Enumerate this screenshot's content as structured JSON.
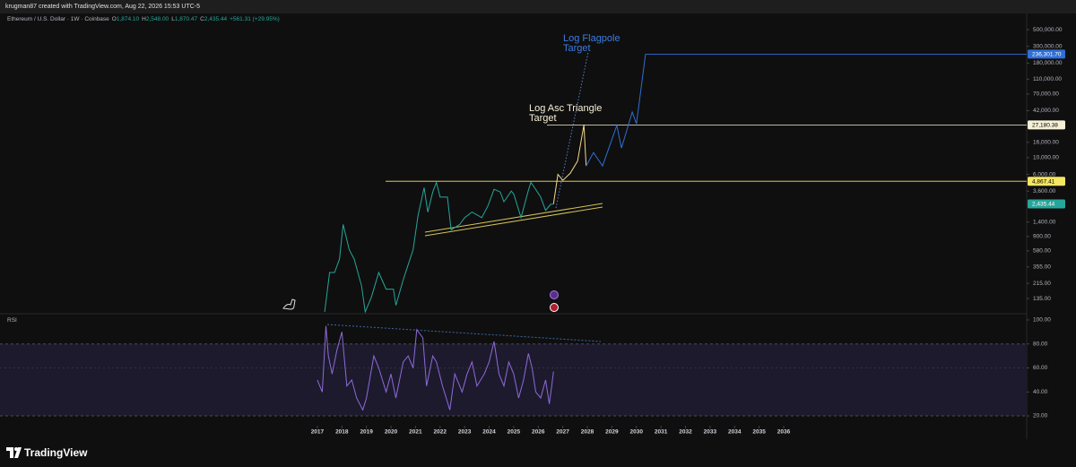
{
  "header": {
    "text": "krugman87 created with TradingView.com, Aug 22, 2026 15:53 UTC-5"
  },
  "footer": {
    "brand": "TradingView"
  },
  "chart_data": [
    {
      "type": "line",
      "title": "Ethereum / U.S. Dollar · 1W · Coinbase",
      "ohlc": [
        {
          "key": "O",
          "value": "1,874.10"
        },
        {
          "key": "H",
          "value": "2,548.00"
        },
        {
          "key": "L",
          "value": "1,870.47"
        },
        {
          "key": "C",
          "value": "2,435.44"
        }
      ],
      "change": "+561.31 (+29.95%)",
      "log_scale": true,
      "xlim": [
        2004.07,
        2045.9
      ],
      "xticks": [
        2017,
        2018,
        2019,
        2020,
        2021,
        2022,
        2023,
        2024,
        2025,
        2026,
        2027,
        2028,
        2029,
        2030,
        2031,
        2032,
        2033,
        2034,
        2035,
        2036
      ],
      "ylim": [
        85,
        820000
      ],
      "yticks": [
        {
          "value": 500000,
          "label": "500,000.00"
        },
        {
          "value": 300000,
          "label": "300,000.00"
        },
        {
          "value": 180000,
          "label": "180,000.00"
        },
        {
          "value": 110000,
          "label": "110,000.00"
        },
        {
          "value": 70000,
          "label": "70,000.00"
        },
        {
          "value": 42000,
          "label": "42,000.00"
        },
        {
          "value": 16000,
          "label": "16,000.00"
        },
        {
          "value": 10000,
          "label": "10,000.00"
        },
        {
          "value": 6000,
          "label": "6,000.00"
        },
        {
          "value": 3600,
          "label": "3,600.00"
        },
        {
          "value": 1400,
          "label": "1,400.00"
        },
        {
          "value": 900,
          "label": "900.00"
        },
        {
          "value": 580,
          "label": "580.00"
        },
        {
          "value": 355,
          "label": "355.00"
        },
        {
          "value": 215,
          "label": "215.00"
        },
        {
          "value": 135,
          "label": "135.00"
        }
      ],
      "series": [
        {
          "color": "#26a69a",
          "x": [
            2017.3,
            2017.5,
            2017.7,
            2017.9,
            2018.05,
            2018.3,
            2018.5,
            2018.8,
            2018.95,
            2019.2,
            2019.5,
            2019.8,
            2020.1,
            2020.2,
            2020.5,
            2020.7,
            2020.9,
            2021.1,
            2021.35,
            2021.5,
            2021.7,
            2021.85,
            2022.0,
            2022.3,
            2022.45,
            2022.8,
            2023.0,
            2023.3,
            2023.7,
            2023.95,
            2024.2,
            2024.45,
            2024.6,
            2024.9,
            2025.0,
            2025.3,
            2025.6,
            2025.7,
            2025.85,
            2026.1,
            2026.3,
            2026.5,
            2026.62
          ],
          "values": [
            90,
            300,
            300,
            450,
            1300,
            600,
            450,
            200,
            90,
            140,
            300,
            180,
            180,
            110,
            240,
            380,
            600,
            1700,
            4000,
            1900,
            3500,
            4700,
            3000,
            3000,
            1100,
            1300,
            1600,
            1900,
            1600,
            2300,
            3800,
            3500,
            2600,
            3600,
            3300,
            1600,
            3700,
            4700,
            4000,
            3000,
            2000,
            2400,
            2435.44
          ]
        },
        {
          "color": "#f5d98b",
          "x": [
            2026.62,
            2026.8,
            2027.0,
            2027.3,
            2027.6,
            2027.86,
            2027.95
          ],
          "values": [
            2435.44,
            6000,
            5000,
            6200,
            9000,
            27180.38,
            7780
          ]
        },
        {
          "color": "#2f6fd6",
          "x": [
            2027.95,
            2028.25,
            2028.62,
            2029.2,
            2029.39,
            2029.83,
            2030.0,
            2030.37
          ],
          "values": [
            7780,
            11700,
            7780,
            26700,
            13450,
            40300,
            28200,
            236301.7
          ]
        }
      ],
      "levels": [
        {
          "value": 236301.7,
          "label": "236,301.70",
          "color": "#2f6fd6",
          "text_color": "#ffffff"
        },
        {
          "value": 27180.38,
          "label": "27,180.38",
          "color": "#f5f0d6",
          "text_color": "#000000"
        },
        {
          "value": 4867.41,
          "label": "4,867.41",
          "color": "#f5e663",
          "text_color": "#000000"
        },
        {
          "value": 2435.44,
          "label": "2,435.44",
          "color": "#26a69a",
          "text_color": "#ffffff"
        }
      ],
      "annotations": [
        {
          "text": "Log Flagpole Target",
          "color": "#3d7be0"
        },
        {
          "text": "Log Asc Triangle Target",
          "color": "#f5f0d6"
        }
      ]
    },
    {
      "type": "line",
      "title": "RSI",
      "ylim": [
        11.8,
        105.2
      ],
      "yticks": [
        {
          "value": 100,
          "label": "100.00"
        },
        {
          "value": 80,
          "label": "80.00"
        },
        {
          "value": 60,
          "label": "60.00"
        },
        {
          "value": 40,
          "label": "40.00"
        },
        {
          "value": 20,
          "label": "20.00"
        }
      ],
      "band": [
        20,
        80
      ],
      "series": [
        {
          "color": "#8e6bd6",
          "x": [
            2017.0,
            2017.2,
            2017.35,
            2017.45,
            2017.6,
            2017.8,
            2018.0,
            2018.2,
            2018.4,
            2018.6,
            2018.85,
            2019.0,
            2019.3,
            2019.5,
            2019.8,
            2020.0,
            2020.2,
            2020.5,
            2020.7,
            2020.9,
            2021.05,
            2021.3,
            2021.45,
            2021.7,
            2021.85,
            2022.1,
            2022.4,
            2022.6,
            2022.9,
            2023.1,
            2023.3,
            2023.5,
            2023.8,
            2024.0,
            2024.2,
            2024.4,
            2024.6,
            2024.8,
            2025.0,
            2025.2,
            2025.4,
            2025.6,
            2025.75,
            2025.9,
            2026.1,
            2026.3,
            2026.45,
            2026.55,
            2026.62
          ],
          "values": [
            50,
            40,
            95,
            70,
            55,
            75,
            90,
            45,
            50,
            35,
            25,
            35,
            70,
            60,
            40,
            55,
            35,
            65,
            70,
            60,
            92,
            85,
            45,
            70,
            65,
            45,
            25,
            55,
            40,
            55,
            65,
            45,
            55,
            65,
            82,
            55,
            45,
            65,
            55,
            35,
            50,
            72,
            60,
            40,
            35,
            50,
            30,
            45,
            57
          ]
        }
      ]
    }
  ]
}
